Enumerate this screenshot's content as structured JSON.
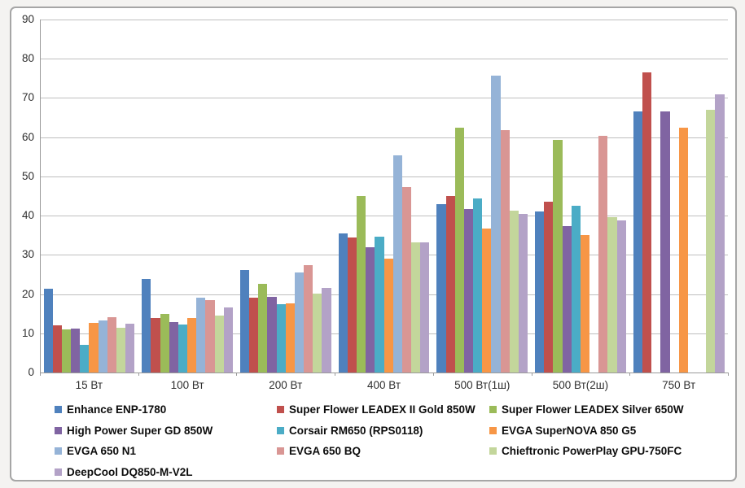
{
  "page": {
    "background_color": "#f4f3f1",
    "chart_background_color": "#ffffff",
    "chart_border_color": "#a6a6a6",
    "gridline_color": "#bfbfbf",
    "axis_color": "#9a9a9a"
  },
  "chart_data": {
    "type": "bar",
    "title": "",
    "xlabel": "",
    "ylabel": "",
    "ylim": [
      0,
      90
    ],
    "ytick_step": 10,
    "yticks": [
      0,
      10,
      20,
      30,
      40,
      50,
      60,
      70,
      80,
      90
    ],
    "grid": "horizontal",
    "legend_position": "bottom",
    "legend_columns": 3,
    "categories": [
      "15 Вт",
      "100 Вт",
      "200 Вт",
      "400 Вт",
      "500 Вт(1ш)",
      "500 Вт(2ш)",
      "750 Вт"
    ],
    "series": [
      {
        "name": "Enhance ENP-1780",
        "color": "#4F81BD",
        "values": [
          21.3,
          23.9,
          26.1,
          35.5,
          43.0,
          41.0,
          66.6
        ]
      },
      {
        "name": "Super Flower LEADEX II Gold 850W",
        "color": "#C0504D",
        "values": [
          12.0,
          13.8,
          19.1,
          34.5,
          45.0,
          43.6,
          76.6
        ]
      },
      {
        "name": "Super Flower LEADEX Silver 650W",
        "color": "#9BBB59",
        "values": [
          11.0,
          15.0,
          22.6,
          45.1,
          62.5,
          59.3,
          null
        ]
      },
      {
        "name": "High Power Super GD 850W",
        "color": "#8064A2",
        "values": [
          11.2,
          12.9,
          19.3,
          32.0,
          41.7,
          37.3,
          66.6
        ]
      },
      {
        "name": "Corsair RM650 (RPS0118)",
        "color": "#4BACC6",
        "values": [
          7.0,
          12.3,
          17.5,
          34.6,
          44.4,
          42.5,
          null
        ]
      },
      {
        "name": "EVGA SuperNOVA 850 G5",
        "color": "#F79646",
        "values": [
          12.6,
          13.9,
          17.7,
          29.0,
          36.8,
          35.1,
          62.4
        ]
      },
      {
        "name": "EVGA 650 N1",
        "color": "#95B3D7",
        "values": [
          13.2,
          19.0,
          25.6,
          55.4,
          75.6,
          null,
          null
        ]
      },
      {
        "name": "EVGA 650 BQ",
        "color": "#D99694",
        "values": [
          14.2,
          18.5,
          27.3,
          47.3,
          61.8,
          60.4,
          null
        ]
      },
      {
        "name": "Chieftronic PowerPlay GPU-750FC",
        "color": "#C3D69B",
        "values": [
          11.5,
          14.5,
          20.2,
          33.1,
          41.2,
          39.6,
          67.0
        ]
      },
      {
        "name": "DeepCool DQ850-M-V2L",
        "color": "#B3A2C7",
        "values": [
          12.4,
          16.6,
          21.6,
          33.1,
          40.4,
          38.8,
          71.0
        ]
      }
    ]
  }
}
